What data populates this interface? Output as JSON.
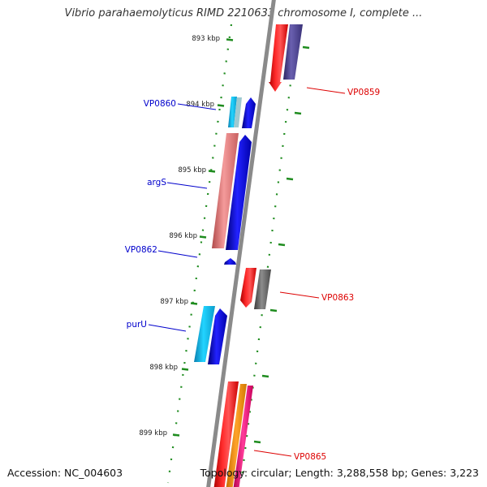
{
  "title": "Vibrio parahaemolyticus RIMD 2210633 chromosome I, complete ...",
  "accession": "Accession: NC_004603",
  "summary": "Topology: circular; Length: 3,288,558 bp; Genes: 3,223",
  "ticks": [
    "893 kbp",
    "894 kbp",
    "895 kbp",
    "896 kbp",
    "897 kbp",
    "898 kbp",
    "899 kbp"
  ],
  "colors": {
    "backbone": "#8a8a8a",
    "tick": "#1f8c1f",
    "forward_label": "#0000cc",
    "reverse_label": "#dd0000"
  },
  "genes_forward": [
    {
      "label": "VP0860",
      "color": "#11c4e8"
    },
    {
      "label": "argS",
      "color": "#f08080"
    },
    {
      "label": "VP0862",
      "color": "#0000ee"
    },
    {
      "label": "purU",
      "color": "#11c4e8"
    }
  ],
  "genes_reverse": [
    {
      "label": "VP0859",
      "color": "#ee0000"
    },
    {
      "label": "VP0863",
      "color": "#ee0000"
    },
    {
      "label": "VP0865",
      "color": "#ee0000"
    }
  ]
}
